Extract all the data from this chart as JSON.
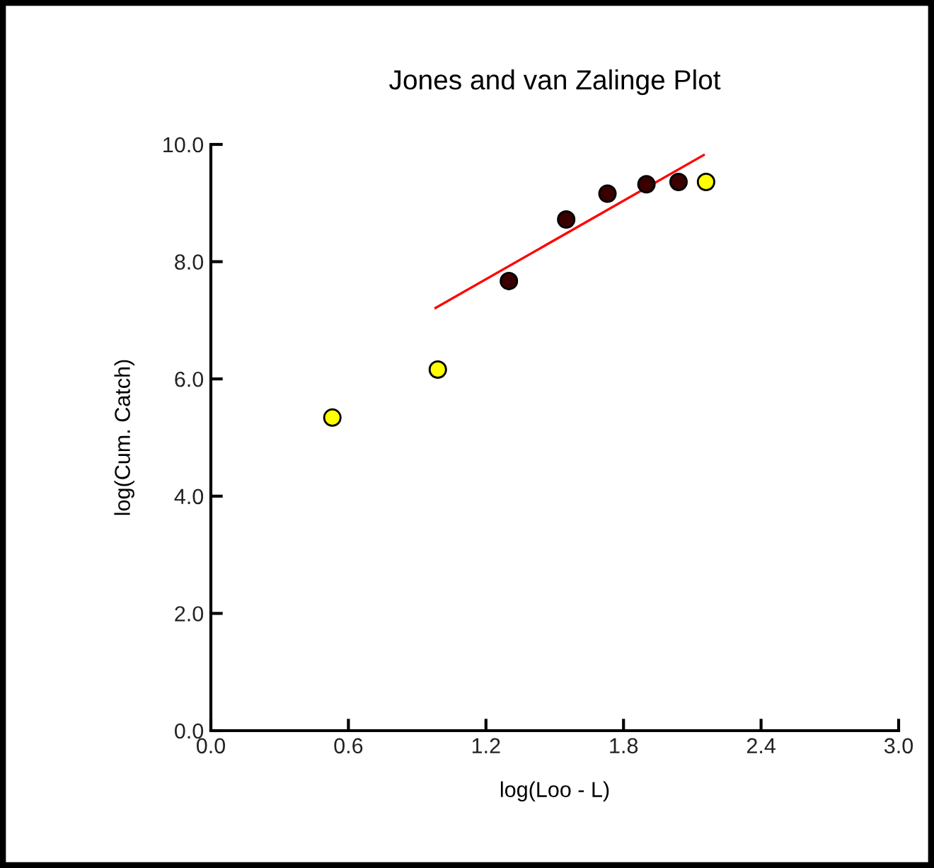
{
  "chart_data": {
    "type": "scatter",
    "title": "Jones and van Zalinge Plot",
    "xlabel": "log(Loo - L)",
    "ylabel": "log(Cum. Catch)",
    "xlim": [
      0,
      3.0
    ],
    "ylim": [
      0,
      10.0
    ],
    "xticks": [
      {
        "value": 0,
        "label": "0.0"
      },
      {
        "value": 0.6,
        "label": "0.6"
      },
      {
        "value": 1.2,
        "label": "1.2"
      },
      {
        "value": 1.8,
        "label": "1.8"
      },
      {
        "value": 2.4,
        "label": "2.4"
      },
      {
        "value": 3.0,
        "label": "3.0"
      }
    ],
    "yticks": [
      {
        "value": 0,
        "label": "0.0"
      },
      {
        "value": 2,
        "label": "2.0"
      },
      {
        "value": 4,
        "label": "4.0"
      },
      {
        "value": 6,
        "label": "6.0"
      },
      {
        "value": 8,
        "label": "8.0"
      },
      {
        "value": 10,
        "label": "10.0"
      }
    ],
    "grid": false,
    "legend": false,
    "marker": "circle",
    "series": [
      {
        "color": "#ffff00",
        "x": [
          0.53,
          0.99,
          2.16
        ],
        "values": [
          5.34,
          6.16,
          9.36
        ]
      },
      {
        "color": "#3a0000",
        "x": [
          1.3,
          1.55,
          1.73,
          1.9,
          2.04
        ],
        "values": [
          7.67,
          8.72,
          9.16,
          9.32,
          9.36
        ]
      },
      {
        "type": "line",
        "color": "#ff0000",
        "marker": "none",
        "x": [
          0.98,
          2.15
        ],
        "values": [
          7.21,
          9.82
        ]
      }
    ]
  }
}
